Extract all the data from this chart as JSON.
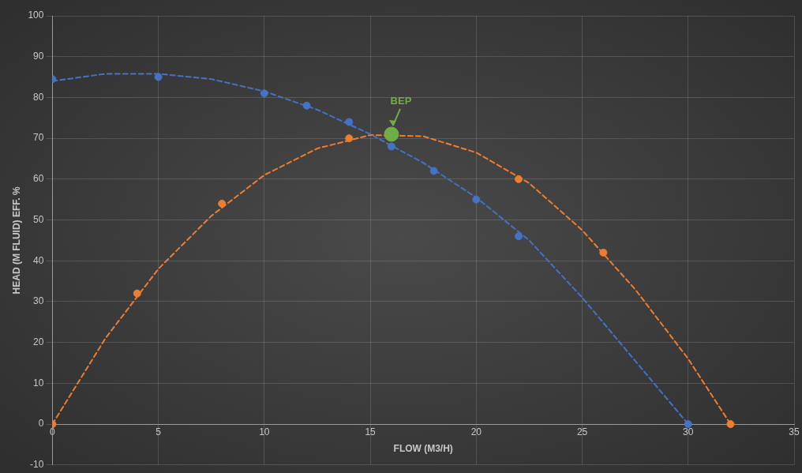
{
  "chart_data": {
    "type": "scatter",
    "xlabel": "FLOW (M3/H)",
    "ylabel": "HEAD (M FLUID) EFF. %",
    "xlim": [
      0,
      35
    ],
    "xticks": [
      0,
      5,
      10,
      15,
      20,
      25,
      30,
      35
    ],
    "ylim": [
      -10,
      100
    ],
    "yticks": [
      -10,
      0,
      10,
      20,
      30,
      40,
      50,
      60,
      70,
      80,
      90,
      100
    ],
    "grid": true,
    "legend": false,
    "marker": "circle",
    "annotations": [
      {
        "text": "BEP",
        "x": 16,
        "y": 71
      }
    ],
    "series": [
      {
        "type": "line",
        "line_style": "dashed",
        "marker": "none",
        "color": "#4472c4",
        "x": [
          0,
          2.5,
          5,
          7.5,
          10,
          12.5,
          15,
          17.5,
          20,
          22.5,
          25,
          27.5,
          30
        ],
        "values": [
          84,
          85.8,
          85.8,
          84.5,
          81.5,
          77,
          71,
          64,
          55.5,
          45,
          31,
          15.5,
          0
        ]
      },
      {
        "type": "line",
        "line_style": "dashed",
        "marker": "none",
        "color": "#ed7d31",
        "x": [
          0,
          2.5,
          5,
          7.5,
          10,
          12.5,
          15,
          17.5,
          20,
          22.5,
          25,
          27.5,
          30,
          32
        ],
        "values": [
          0,
          21,
          38,
          51,
          61,
          67.5,
          70.8,
          70.5,
          66.5,
          59,
          47.5,
          33,
          16,
          0
        ]
      },
      {
        "color": "#4472c4",
        "x": [
          0,
          5,
          10,
          12,
          14,
          16,
          18,
          20,
          22,
          30
        ],
        "values": [
          84.5,
          85,
          81,
          78,
          74,
          68,
          62,
          55,
          46,
          0
        ]
      },
      {
        "color": "#ed7d31",
        "x": [
          0,
          4,
          8,
          14,
          22,
          26,
          32
        ],
        "values": [
          0,
          32,
          54,
          70,
          60,
          42,
          0
        ]
      },
      {
        "color": "#70ad47",
        "marker": "circle",
        "x": [
          16
        ],
        "values": [
          71
        ]
      }
    ]
  }
}
